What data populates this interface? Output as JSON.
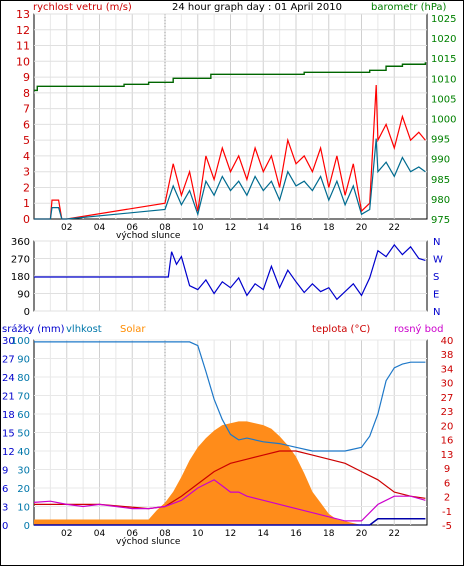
{
  "header": {
    "left_label": "rychlost vetru (m/s)",
    "title": "24 hour graph day : 01 April 2010",
    "right_label": "barometr (hPa)"
  },
  "sunrise_label": "východ slunce",
  "panel3_labels": {
    "rain": "srážky (mm)",
    "humidity": "vlhkost",
    "solar": "Solar",
    "temp": "teplota (°C)",
    "dew": "rosný bod"
  },
  "direction_letters": [
    "N",
    "W",
    "S",
    "E",
    "N"
  ],
  "colors": {
    "wind_gust": "#ff0000",
    "wind_avg": "#006b8f",
    "barometer": "#006600",
    "direction": "#0000cc",
    "humidity": "#1e78c8",
    "solar": "#ff8c1a",
    "temperature": "#cc0000",
    "dew_point": "#cc00cc",
    "rain": "#0000aa",
    "label_red": "#cc0000",
    "label_green": "#008000",
    "label_blue": "#0000cc",
    "label_cyan": "#0077aa",
    "label_orange": "#ff8c00",
    "label_magenta": "#cc00cc"
  },
  "chart_data": [
    {
      "type": "line",
      "title": "24 hour graph day : 01 April 2010",
      "x_ticks": [
        "02",
        "04",
        "06",
        "08",
        "10",
        "12",
        "14",
        "16",
        "18",
        "20",
        "22"
      ],
      "xlim": [
        0,
        24
      ],
      "y_left_ticks": [
        "0",
        "1",
        "2",
        "3",
        "4",
        "5",
        "6",
        "7",
        "8",
        "9",
        "10",
        "11",
        "12",
        "13"
      ],
      "ylim_left": [
        0,
        13
      ],
      "y_right_ticks": [
        "975",
        "980",
        "985",
        "990",
        "995",
        "1000",
        "1005",
        "1010",
        "1015",
        "1020",
        "1025"
      ],
      "ylim_right": [
        975,
        1026
      ],
      "series": [
        {
          "name": "rychlost vetru (m/s)",
          "axis": "left",
          "style": "gust",
          "x": [
            0,
            1.0,
            1.1,
            1.5,
            1.7,
            2.0,
            8.0,
            8.5,
            9.0,
            9.5,
            10.0,
            10.5,
            11.0,
            11.5,
            12.0,
            12.5,
            13.0,
            13.5,
            14.0,
            14.5,
            15.0,
            15.5,
            16.0,
            16.5,
            17.0,
            17.5,
            18.0,
            18.5,
            19.0,
            19.5,
            20.0,
            20.5,
            20.9,
            21.0,
            21.5,
            22.0,
            22.5,
            23.0,
            23.5,
            23.9
          ],
          "values": [
            0,
            0,
            1.2,
            1.2,
            0,
            0,
            1,
            3.5,
            1.5,
            3,
            0.5,
            4,
            2.5,
            4.5,
            3,
            4,
            2.5,
            4.5,
            3,
            4,
            2,
            5,
            3.5,
            4,
            3,
            4.5,
            2,
            4,
            1.5,
            3.5,
            0.5,
            1,
            8.5,
            5,
            6,
            4.5,
            6.5,
            5,
            5.5,
            5
          ]
        },
        {
          "name": "barometr (hPa)",
          "axis": "right",
          "style": "step",
          "x": [
            0,
            0.2,
            4.0,
            5.5,
            7.0,
            8.5,
            10.0,
            10.8,
            12.0,
            16.5,
            20.5,
            21.5,
            22.5,
            23.9
          ],
          "values": [
            1007,
            1008,
            1008,
            1008.5,
            1009,
            1010,
            1010,
            1011,
            1011,
            1011.5,
            1012,
            1013,
            1013.5,
            1014
          ]
        }
      ]
    },
    {
      "type": "line",
      "x_ticks": [
        "02",
        "04",
        "06",
        "08",
        "10",
        "12",
        "14",
        "16",
        "18",
        "20",
        "22"
      ],
      "xlim": [
        0,
        24
      ],
      "y_left_ticks": [
        "0",
        "90",
        "180",
        "270",
        "360"
      ],
      "ylim": [
        0,
        360
      ],
      "y_right_ticks": [
        "N",
        "W",
        "S",
        "E",
        "N"
      ],
      "series": [
        {
          "name": "direction",
          "x": [
            0,
            8.2,
            8.4,
            8.7,
            9.0,
            9.5,
            10.0,
            10.5,
            11.0,
            11.5,
            12.0,
            12.5,
            13.0,
            13.5,
            14.0,
            14.5,
            15.0,
            15.5,
            16.0,
            16.5,
            17.0,
            17.5,
            18.0,
            18.5,
            19.0,
            19.5,
            20.0,
            20.5,
            21.0,
            21.5,
            22.0,
            22.5,
            23.0,
            23.5,
            23.9
          ],
          "values": [
            175,
            175,
            305,
            240,
            280,
            130,
            110,
            160,
            90,
            150,
            120,
            170,
            80,
            140,
            110,
            230,
            120,
            210,
            150,
            95,
            140,
            100,
            120,
            60,
            100,
            140,
            80,
            170,
            310,
            280,
            340,
            290,
            330,
            270,
            260
          ]
        }
      ]
    },
    {
      "type": "line",
      "x_ticks": [
        "02",
        "04",
        "06",
        "08",
        "10",
        "12",
        "14",
        "16",
        "18",
        "20",
        "22"
      ],
      "xlim": [
        0,
        24
      ],
      "y_left_rain_ticks": [
        "0",
        "3",
        "6",
        "9",
        "12",
        "15",
        "18",
        "21",
        "24",
        "27",
        "30"
      ],
      "y_left_humidity_ticks": [
        "0",
        "10",
        "20",
        "30",
        "40",
        "50",
        "60",
        "70",
        "80",
        "90",
        "100"
      ],
      "y_right_ticks": [
        "-5",
        "-1",
        "2",
        "6",
        "9",
        "13",
        "16",
        "20",
        "23",
        "27",
        "30",
        "34",
        "38",
        "40"
      ],
      "ylim_humidity": [
        0,
        100
      ],
      "ylim_temp": [
        -5,
        40
      ],
      "series": [
        {
          "name": "Solar",
          "axis": "humidity-scale",
          "style": "area",
          "x": [
            0,
            7.0,
            7.5,
            8.0,
            8.5,
            9.0,
            9.5,
            10.0,
            10.5,
            11.0,
            11.5,
            12.0,
            12.5,
            13.0,
            13.5,
            14.0,
            14.5,
            15.0,
            15.5,
            16.0,
            16.5,
            17.0,
            17.5,
            18.0,
            18.5,
            19.0,
            19.5,
            20.0,
            24.0
          ],
          "values": [
            3,
            3,
            8,
            12,
            18,
            26,
            35,
            42,
            47,
            51,
            54,
            55,
            56,
            56,
            55,
            54,
            52,
            48,
            43,
            37,
            28,
            18,
            12,
            6,
            3,
            2,
            1,
            0,
            0
          ]
        },
        {
          "name": "vlhkost",
          "axis": "humidity-scale",
          "x": [
            0,
            9.5,
            10.0,
            10.5,
            11.0,
            11.5,
            12.0,
            12.5,
            13.0,
            14.0,
            15.0,
            16.0,
            17.0,
            18.0,
            19.0,
            20.0,
            20.5,
            21.0,
            21.5,
            22.0,
            22.5,
            23.0,
            23.9
          ],
          "values": [
            99,
            99,
            97,
            83,
            68,
            57,
            49,
            46,
            47,
            45,
            44,
            42,
            40,
            40,
            40,
            42,
            48,
            60,
            78,
            85,
            87,
            88,
            88
          ]
        },
        {
          "name": "teplota (°C)",
          "axis": "temp",
          "x": [
            0,
            4,
            7,
            8,
            9,
            10,
            11,
            12,
            13,
            14,
            15,
            16,
            17,
            18,
            19,
            20,
            21,
            22,
            23,
            23.9
          ],
          "values": [
            0,
            0,
            -1,
            -0.5,
            2,
            5,
            8,
            10,
            11,
            12,
            13,
            13,
            12,
            11,
            10,
            8,
            6,
            3,
            2,
            1.5
          ]
        },
        {
          "name": "rosný bod",
          "axis": "temp",
          "x": [
            0,
            1,
            2,
            3,
            4,
            5,
            6,
            7,
            8,
            9,
            10,
            10.5,
            11,
            11.5,
            12,
            12.5,
            13,
            14,
            15,
            16,
            17,
            18,
            19,
            20,
            21,
            22,
            23,
            23.9
          ],
          "values": [
            0.5,
            0.8,
            0,
            -0.5,
            0,
            -0.5,
            -1,
            -1,
            -0.5,
            1,
            4,
            5,
            6,
            4.5,
            3,
            3,
            2,
            1,
            0,
            -1,
            -2,
            -3,
            -4,
            -4,
            0,
            2,
            2,
            1
          ]
        },
        {
          "name": "srážky (mm)",
          "axis": "rain",
          "x": [
            0,
            20.5,
            21.0,
            23.9
          ],
          "values": [
            0,
            0,
            1,
            1
          ]
        }
      ]
    }
  ]
}
